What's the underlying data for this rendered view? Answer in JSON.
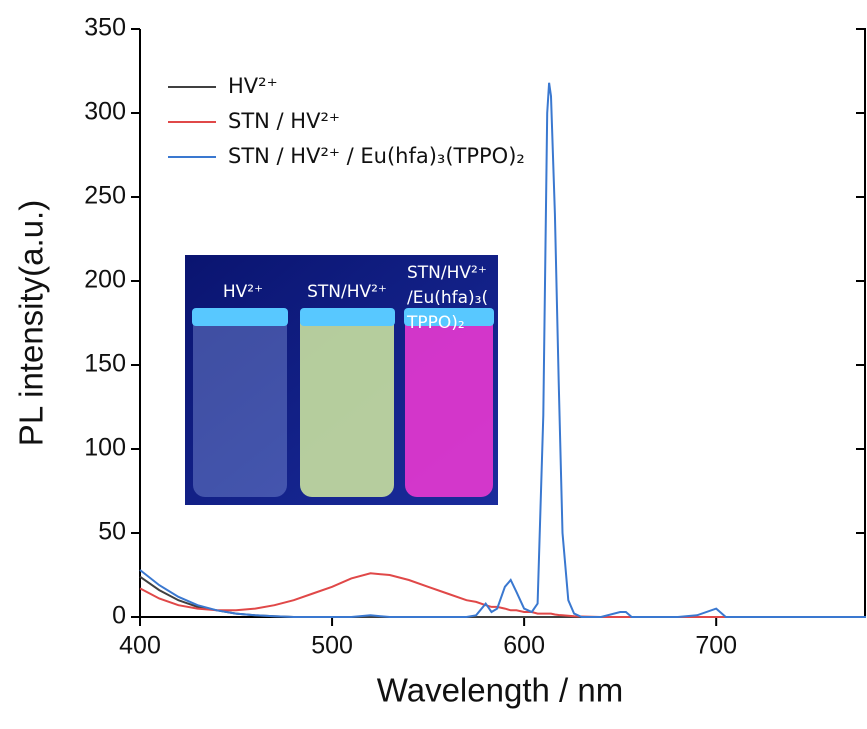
{
  "chart_data": {
    "type": "line",
    "x_label": "Wavelength / nm",
    "y_label": "PL intensity(a.u.)",
    "x": [
      400,
      410,
      420,
      430,
      440,
      450,
      460,
      470,
      480,
      490,
      500,
      510,
      520,
      530,
      540,
      550,
      560,
      570,
      575,
      580,
      583,
      586,
      590,
      593,
      596,
      600,
      604,
      607,
      610,
      612,
      613,
      614,
      616,
      618,
      620,
      623,
      626,
      630,
      640,
      650,
      653,
      656,
      660,
      680,
      690,
      700,
      705,
      720,
      750,
      778
    ],
    "series": [
      {
        "name": "HV²⁺",
        "color": "#404040",
        "values": [
          24,
          16,
          10,
          6,
          4,
          2,
          1,
          0.5,
          0,
          0,
          0,
          0,
          0,
          0,
          0,
          0,
          0,
          0,
          0,
          0,
          0,
          0,
          0,
          0,
          0,
          0,
          0,
          0,
          0,
          0,
          0,
          0,
          0,
          0,
          0,
          0,
          0,
          0,
          0,
          0,
          0,
          0,
          0,
          0,
          0,
          0,
          0,
          0,
          0,
          0
        ]
      },
      {
        "name": "STN / HV²⁺",
        "color": "#e04848",
        "values": [
          17,
          11,
          7,
          5,
          4,
          4,
          5,
          7,
          10,
          14,
          18,
          23,
          26,
          25,
          22,
          18,
          14,
          10,
          9,
          7,
          6,
          6,
          5,
          4,
          4,
          3,
          3,
          2,
          2,
          2,
          2,
          2,
          1.5,
          1.2,
          1,
          0.8,
          0.5,
          0.3,
          0,
          0,
          0,
          0,
          0,
          0,
          0,
          0,
          0,
          0,
          0,
          0
        ]
      },
      {
        "name": "STN / HV²⁺ / Eu(hfa)₃(TPPO)₂",
        "color": "#3a78d0",
        "values": [
          28,
          19,
          12,
          7,
          4,
          2,
          1,
          0.5,
          0,
          0,
          0,
          0,
          1,
          0,
          0,
          0,
          0,
          0,
          1,
          8,
          3,
          5,
          18,
          22,
          15,
          5,
          3,
          8,
          120,
          300,
          318,
          310,
          240,
          140,
          50,
          10,
          2,
          0,
          0,
          3,
          3,
          0,
          0,
          0,
          1,
          5,
          0,
          0,
          0,
          0
        ]
      }
    ],
    "xlim": [
      400,
      778
    ],
    "xticks": [
      400,
      500,
      600,
      700
    ],
    "ylim": [
      0,
      350
    ],
    "yticks": [
      0,
      50,
      100,
      150,
      200,
      250,
      300,
      350
    ],
    "legend": "upper-left",
    "inset_labels": [
      [
        "HV²⁺"
      ],
      [
        "STN/HV²⁺"
      ],
      [
        "STN/HV²⁺",
        "/Eu(hfa)₃(",
        "TPPO)₂"
      ]
    ]
  }
}
